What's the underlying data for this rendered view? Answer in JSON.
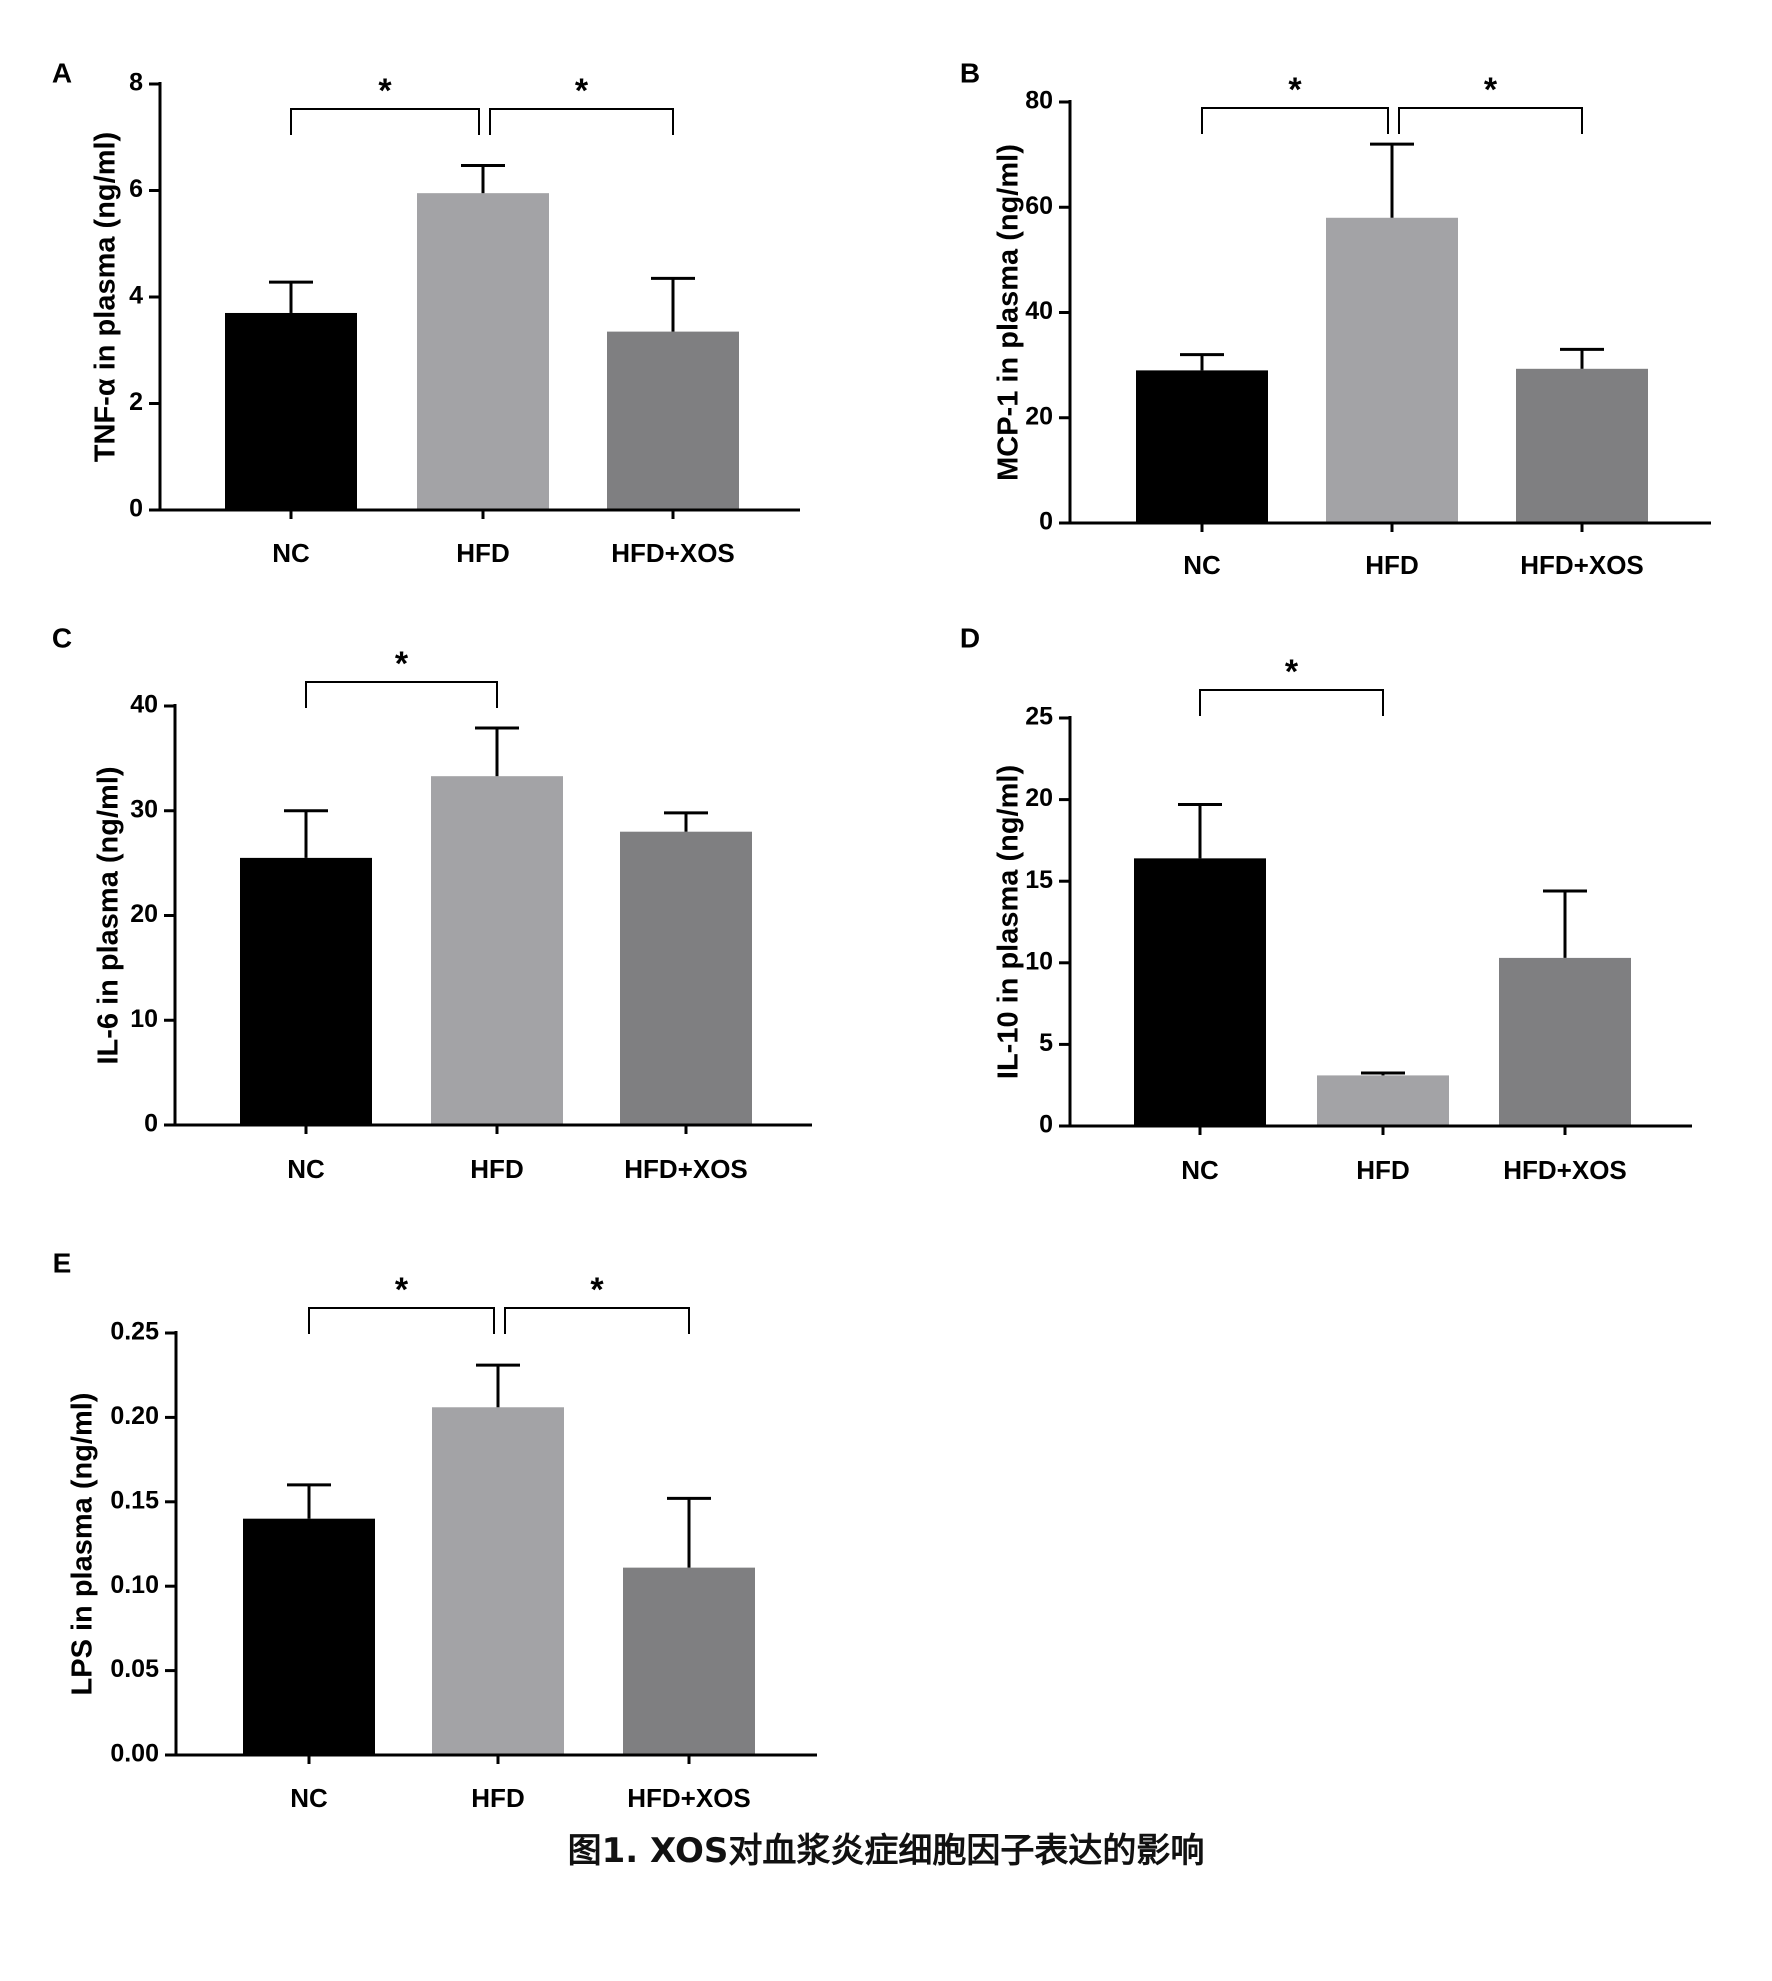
{
  "caption": "图1. XOS对血浆炎症细胞因子表达的影响",
  "colors": {
    "NC": "#000000",
    "HFD": "#a3a3a6",
    "HFD+XOS": "#7f7f81",
    "axis": "#000000"
  },
  "chart_data": [
    {
      "panel": "A",
      "type": "bar",
      "categories": [
        "NC",
        "HFD",
        "HFD+XOS"
      ],
      "values": [
        3.7,
        5.95,
        3.35
      ],
      "errors": [
        0.58,
        0.52,
        1.0
      ],
      "ylabel": "TNF-α in plasma (ng/ml)",
      "ylim": [
        0,
        8
      ],
      "yticks": [
        0,
        2,
        4,
        6,
        8
      ],
      "ytick_labels": [
        "0",
        "2",
        "4",
        "6",
        "8"
      ],
      "significance": [
        {
          "from": 0,
          "to": 1,
          "label": "*"
        },
        {
          "from": 1,
          "to": 2,
          "label": "*"
        }
      ]
    },
    {
      "panel": "B",
      "type": "bar",
      "categories": [
        "NC",
        "HFD",
        "HFD+XOS"
      ],
      "values": [
        29,
        58,
        29.3
      ],
      "errors": [
        3,
        14,
        3.7
      ],
      "ylabel": "MCP-1 in plasma (ng/ml)",
      "ylim": [
        0,
        80
      ],
      "yticks": [
        0,
        20,
        40,
        60,
        80
      ],
      "ytick_labels": [
        "0",
        "20",
        "40",
        "60",
        "80"
      ],
      "significance": [
        {
          "from": 0,
          "to": 1,
          "label": "*"
        },
        {
          "from": 1,
          "to": 2,
          "label": "*"
        }
      ]
    },
    {
      "panel": "C",
      "type": "bar",
      "categories": [
        "NC",
        "HFD",
        "HFD+XOS"
      ],
      "values": [
        25.5,
        33.3,
        28
      ],
      "errors": [
        4.5,
        4.6,
        1.8
      ],
      "ylabel": "IL-6 in plasma (ng/ml)",
      "ylim": [
        0,
        40
      ],
      "yticks": [
        0,
        10,
        20,
        30,
        40
      ],
      "ytick_labels": [
        "0",
        "10",
        "20",
        "30",
        "40"
      ],
      "significance": [
        {
          "from": 0,
          "to": 1,
          "label": "*"
        }
      ]
    },
    {
      "panel": "D",
      "type": "bar",
      "categories": [
        "NC",
        "HFD",
        "HFD+XOS"
      ],
      "values": [
        16.4,
        3.1,
        10.3
      ],
      "errors": [
        3.3,
        0.15,
        4.1
      ],
      "ylabel": "IL-10 in plasma (ng/ml)",
      "ylim": [
        0,
        25
      ],
      "yticks": [
        0,
        5,
        10,
        15,
        20,
        25
      ],
      "ytick_labels": [
        "0",
        "5",
        "10",
        "15",
        "20",
        "25"
      ],
      "significance": [
        {
          "from": 0,
          "to": 1,
          "label": "*"
        }
      ]
    },
    {
      "panel": "E",
      "type": "bar",
      "categories": [
        "NC",
        "HFD",
        "HFD+XOS"
      ],
      "values": [
        0.14,
        0.206,
        0.111
      ],
      "errors": [
        0.02,
        0.025,
        0.041
      ],
      "ylabel": "LPS in plasma (ng/ml)",
      "ylim": [
        0,
        0.25
      ],
      "yticks": [
        0,
        0.05,
        0.1,
        0.15,
        0.2,
        0.25
      ],
      "ytick_labels": [
        "0.00",
        "0.05",
        "0.10",
        "0.15",
        "0.20",
        "0.25"
      ],
      "significance": [
        {
          "from": 0,
          "to": 1,
          "label": "*"
        },
        {
          "from": 1,
          "to": 2,
          "label": "*"
        }
      ]
    }
  ]
}
